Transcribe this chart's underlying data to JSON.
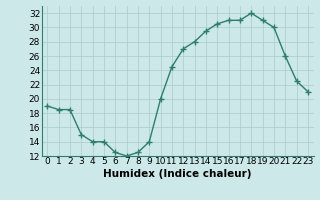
{
  "x": [
    0,
    1,
    2,
    3,
    4,
    5,
    6,
    7,
    8,
    9,
    10,
    11,
    12,
    13,
    14,
    15,
    16,
    17,
    18,
    19,
    20,
    21,
    22,
    23
  ],
  "y": [
    19.0,
    18.5,
    18.5,
    15.0,
    14.0,
    14.0,
    12.5,
    12.0,
    12.5,
    14.0,
    20.0,
    24.5,
    27.0,
    28.0,
    29.5,
    30.5,
    31.0,
    31.0,
    32.0,
    31.0,
    30.0,
    26.0,
    22.5,
    21.0
  ],
  "line_color": "#2e7d6e",
  "bg_color": "#cce8e8",
  "grid_color": "#aacccc",
  "xlabel": "Humidex (Indice chaleur)",
  "ylim": [
    12,
    33
  ],
  "yticks": [
    12,
    14,
    16,
    18,
    20,
    22,
    24,
    26,
    28,
    30,
    32
  ],
  "xticks": [
    0,
    1,
    2,
    3,
    4,
    5,
    6,
    7,
    8,
    9,
    10,
    11,
    12,
    13,
    14,
    15,
    16,
    17,
    18,
    19,
    20,
    21,
    22,
    23
  ],
  "xlabel_fontsize": 7.5,
  "tick_fontsize": 6.5,
  "marker": "+",
  "marker_size": 4,
  "line_width": 1.0
}
